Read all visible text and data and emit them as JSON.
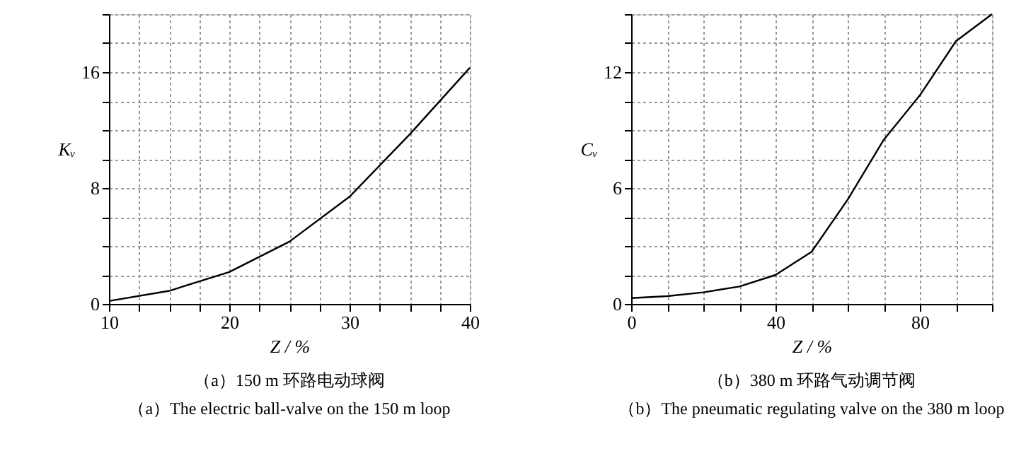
{
  "chart_data": [
    {
      "type": "line",
      "xlabel": "Z / %",
      "ylabel": "Kᵥ",
      "x": [
        10,
        15,
        20,
        25,
        30,
        35,
        40
      ],
      "series": [
        {
          "color": "#000000",
          "values": [
            0.2,
            0.9,
            2.2,
            4.3,
            7.4,
            11.7,
            16.3
          ]
        }
      ],
      "xlim": [
        10,
        40
      ],
      "ylim": [
        0,
        20
      ],
      "xticks": [
        10,
        {
          "value": 12.5,
          "label": null
        },
        {
          "value": 15,
          "label": null
        },
        {
          "value": 17.5,
          "label": null
        },
        20,
        {
          "value": 22.5,
          "label": null
        },
        {
          "value": 25,
          "label": null
        },
        {
          "value": 27.5,
          "label": null
        },
        30,
        {
          "value": 32.5,
          "label": null
        },
        {
          "value": 35,
          "label": null
        },
        {
          "value": 37.5,
          "label": null
        },
        40
      ],
      "yticks": [
        0,
        {
          "value": 2,
          "label": null
        },
        {
          "value": 4,
          "label": null
        },
        {
          "value": 6,
          "label": null
        },
        8,
        {
          "value": 10,
          "label": null
        },
        {
          "value": 12,
          "label": null
        },
        {
          "value": 14,
          "label": null
        },
        16,
        {
          "value": 18,
          "label": null
        },
        {
          "value": 20,
          "label": null
        }
      ],
      "grid": true,
      "marker": "none",
      "line_style": "solid",
      "annotations": [
        "（a）150 m 环路电动球阀",
        "（a）The electric ball-valve on the 150 m loop"
      ]
    },
    {
      "type": "line",
      "xlabel": "Z / %",
      "ylabel": "Cᵥ",
      "x": [
        0,
        10,
        20,
        30,
        40,
        50,
        60,
        70,
        80,
        90,
        100
      ],
      "series": [
        {
          "color": "#000000",
          "values": [
            0.3,
            0.4,
            0.6,
            0.9,
            1.5,
            2.7,
            5.4,
            8.5,
            10.8,
            13.6,
            15.0
          ]
        }
      ],
      "xlim": [
        0,
        100
      ],
      "ylim": [
        0,
        15
      ],
      "xticks": [
        0,
        {
          "value": 10,
          "label": null
        },
        {
          "value": 20,
          "label": null
        },
        {
          "value": 30,
          "label": null
        },
        40,
        {
          "value": 50,
          "label": null
        },
        {
          "value": 60,
          "label": null
        },
        {
          "value": 70,
          "label": null
        },
        80,
        {
          "value": 90,
          "label": null
        },
        {
          "value": 100,
          "label": null
        }
      ],
      "yticks": [
        0,
        {
          "value": 1.5,
          "label": null
        },
        {
          "value": 3,
          "label": null
        },
        {
          "value": 4.5,
          "label": null
        },
        6,
        {
          "value": 7.5,
          "label": null
        },
        {
          "value": 9,
          "label": null
        },
        {
          "value": 10.5,
          "label": null
        },
        12,
        {
          "value": 13.5,
          "label": null
        },
        {
          "value": 15,
          "label": null
        }
      ],
      "grid": true,
      "marker": "none",
      "line_style": "solid",
      "annotations": [
        "（b）380 m 环路气动调节阀",
        "（b）The pneumatic regulating valve on the 380 m loop"
      ]
    }
  ]
}
